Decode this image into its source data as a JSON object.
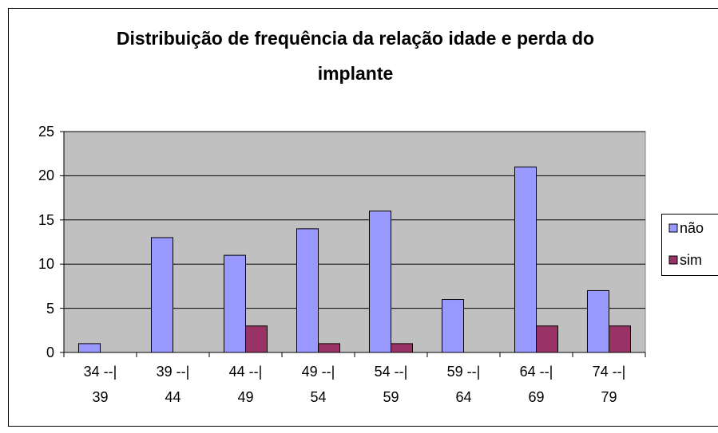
{
  "chart_data": {
    "type": "bar",
    "title": "Distribuição de frequência da relação idade e perda do implante",
    "categories": [
      "34 --| 39",
      "39 --| 44",
      "44 --| 49",
      "49 --| 54",
      "54 --| 59",
      "59 --| 64",
      "64 --| 69",
      "74 --| 79"
    ],
    "series": [
      {
        "name": "não",
        "color": "#9999ff",
        "values": [
          1,
          13,
          11,
          14,
          16,
          6,
          21,
          7
        ]
      },
      {
        "name": "sim",
        "color": "#993366",
        "values": [
          0,
          0,
          3,
          1,
          1,
          0,
          3,
          3
        ]
      }
    ],
    "ylim": [
      0,
      25
    ],
    "yticks": [
      0,
      5,
      10,
      15,
      20,
      25
    ],
    "grid": true,
    "legend": "right"
  }
}
